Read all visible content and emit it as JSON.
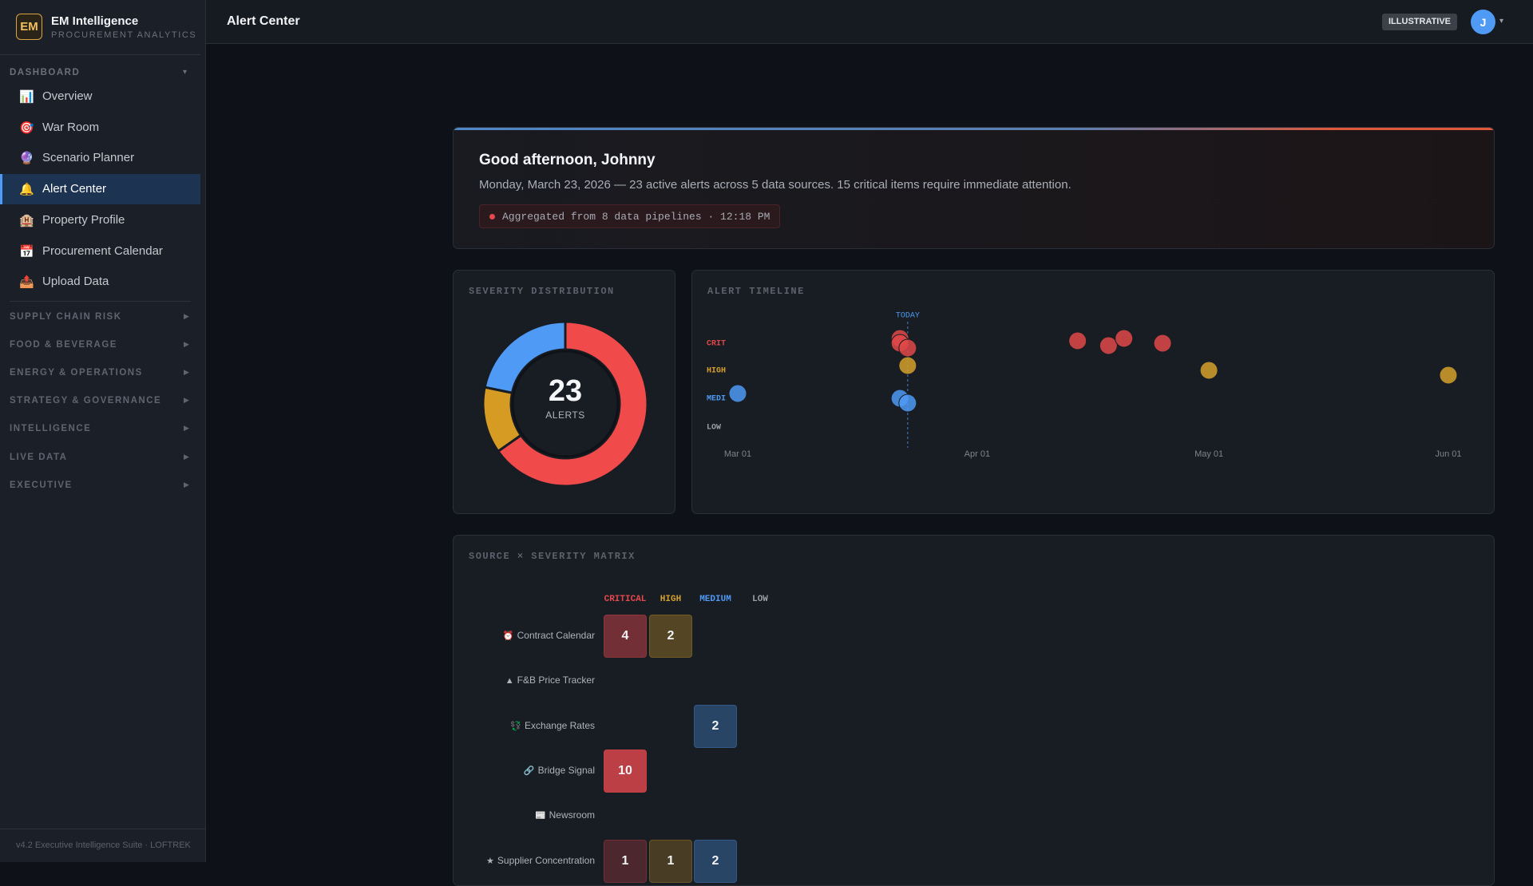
{
  "brand": {
    "logo": "EM",
    "name": "EM Intelligence",
    "subtitle": "PROCUREMENT ANALYTICS"
  },
  "nav": {
    "section": "DASHBOARD",
    "active": 3,
    "items": [
      {
        "icon": "📊",
        "label": "Overview"
      },
      {
        "icon": "🎯",
        "label": "War Room"
      },
      {
        "icon": "🔮",
        "label": "Scenario Planner"
      },
      {
        "icon": "🔔",
        "label": "Alert Center"
      },
      {
        "icon": "🏨",
        "label": "Property Profile"
      },
      {
        "icon": "📅",
        "label": "Procurement Calendar"
      },
      {
        "icon": "📤",
        "label": "Upload Data"
      }
    ],
    "groups": [
      "SUPPLY CHAIN RISK",
      "FOOD & BEVERAGE",
      "ENERGY & OPERATIONS",
      "STRATEGY & GOVERNANCE",
      "INTELLIGENCE",
      "LIVE DATA",
      "EXECUTIVE"
    ]
  },
  "footer": "v4.2 Executive Intelligence Suite · LOFTREK",
  "header": {
    "title": "Alert Center",
    "badge": "ILLUSTRATIVE",
    "avatar": "J"
  },
  "greeting": {
    "title": "Good afternoon, Johnny",
    "text": "Monday, March 23, 2026 — 23 active alerts across 5 data sources. 15 critical items require immediate attention.",
    "status": "Aggregated from 8 data pipelines · 12:18 PM"
  },
  "chart_data": [
    {
      "type": "pie",
      "title": "SEVERITY DISTRIBUTION",
      "values": [
        15,
        3,
        5
      ],
      "colors": [
        "#f04a4a",
        "#d59b22",
        "#4f9af5"
      ],
      "total": 23,
      "total_label": "ALERTS"
    },
    {
      "type": "scatter",
      "title": "ALERT TIMELINE",
      "xlim": [
        "Feb 26",
        "Jun 04"
      ],
      "xticks": [
        "Mar 01",
        "Apr 01",
        "May 01",
        "Jun 01"
      ],
      "today": "Mar 23",
      "today_label": "TODAY",
      "series": [
        {
          "name": "CRIT",
          "color": "#e04848",
          "x": [
            "Mar 22",
            "Mar 22",
            "Mar 23",
            "Apr 14",
            "Apr 18",
            "Apr 20",
            "Apr 25"
          ]
        },
        {
          "name": "HIGH",
          "color": "#d4a02a",
          "x": [
            "Mar 23",
            "May 01",
            "Jun 01"
          ]
        },
        {
          "name": "MEDI",
          "color": "#4f9af5",
          "x": [
            "Mar 01",
            "Mar 22",
            "Mar 23"
          ]
        },
        {
          "name": "LOW",
          "color": "#9aa0a8",
          "x": []
        }
      ]
    }
  ],
  "matrix": {
    "title": "SOURCE × SEVERITY MATRIX",
    "columns": [
      {
        "label": "CRITICAL",
        "color": "#e5484d"
      },
      {
        "label": "HIGH",
        "color": "#d4a02a"
      },
      {
        "label": "MEDIUM",
        "color": "#4f9af5"
      },
      {
        "label": "LOW",
        "color": "#9aa0a8"
      }
    ],
    "rows": [
      {
        "icon": "⏰",
        "label": "Contract Calendar",
        "values": [
          4,
          2,
          null,
          null
        ]
      },
      {
        "icon": "▲",
        "label": "F&B Price Tracker",
        "values": [
          null,
          null,
          null,
          null
        ]
      },
      {
        "icon": "💱",
        "label": "Exchange Rates",
        "values": [
          null,
          null,
          2,
          null
        ]
      },
      {
        "icon": "🔗",
        "label": "Bridge Signal",
        "values": [
          10,
          null,
          null,
          null
        ]
      },
      {
        "icon": "📰",
        "label": "Newsroom",
        "values": [
          null,
          null,
          null,
          null
        ]
      },
      {
        "icon": "★",
        "label": "Supplier Concentration",
        "values": [
          1,
          1,
          2,
          null
        ]
      }
    ]
  }
}
